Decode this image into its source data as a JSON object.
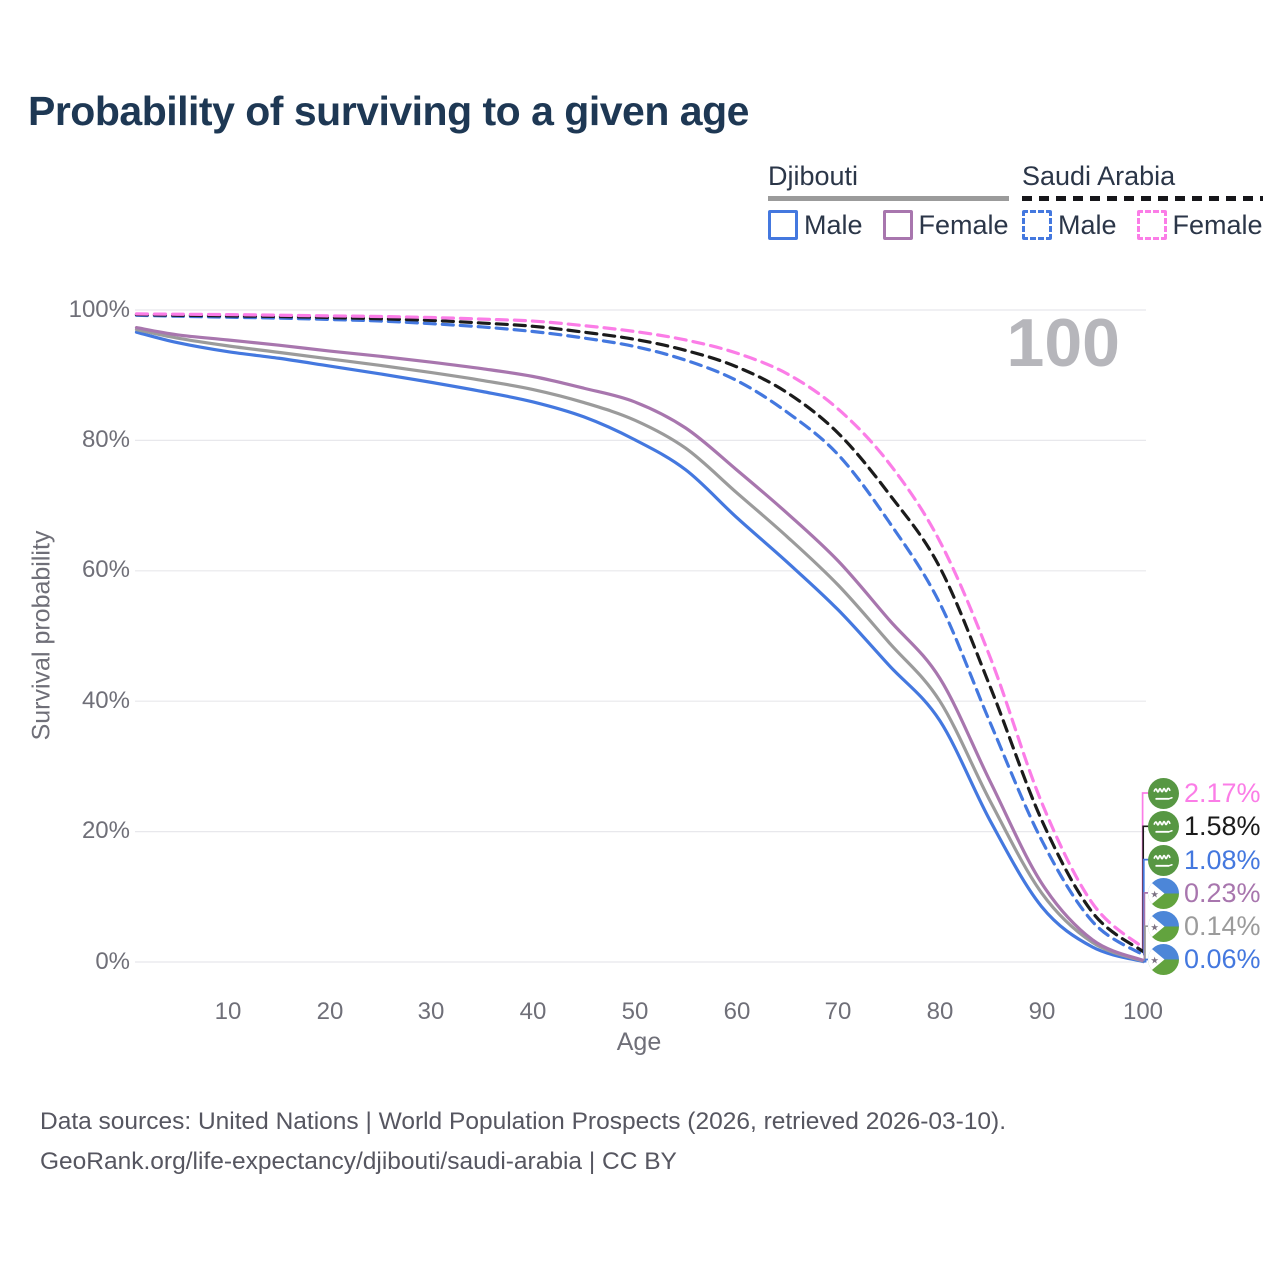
{
  "title": "Probability of surviving to a given age",
  "watermark": "100",
  "legend": {
    "groups": [
      {
        "label": "Djibouti",
        "line_style": "solid",
        "underline_color": "#9b9b9b",
        "items": [
          {
            "label": "Male",
            "color": "#4478df"
          },
          {
            "label": "Female",
            "color": "#a876ae"
          }
        ]
      },
      {
        "label": "Saudi Arabia",
        "line_style": "dashed",
        "underline_color": "#16161a",
        "items": [
          {
            "label": "Male",
            "color": "#4478df"
          },
          {
            "label": "Female",
            "color": "#fb7de7"
          }
        ]
      }
    ]
  },
  "chart_data": {
    "type": "line",
    "title": "Probability of surviving to a given age",
    "xlabel": "Age",
    "ylabel": "Survival probability",
    "xlim": [
      1,
      100
    ],
    "ylim": [
      0,
      100
    ],
    "grid": "horizontal",
    "legend_position": "top-right",
    "x_ticks": [
      10,
      20,
      30,
      40,
      50,
      60,
      70,
      80,
      90,
      100
    ],
    "y_tick_labels": [
      "0%",
      "20%",
      "40%",
      "60%",
      "80%",
      "100%"
    ],
    "y_gridlines": [
      0,
      20,
      40,
      60,
      80,
      100
    ],
    "ages": [
      1,
      5,
      10,
      15,
      20,
      25,
      30,
      35,
      40,
      45,
      50,
      55,
      60,
      65,
      70,
      75,
      80,
      85,
      90,
      95,
      100
    ],
    "series": [
      {
        "name": "Saudi Arabia Female",
        "country": "Saudi Arabia",
        "sex": "Female",
        "line": "dashed",
        "color": "#fb7de7",
        "end_value_pct": 2.17,
        "end_label": "2.17%",
        "values": [
          99.4,
          99.35,
          99.3,
          99.2,
          99.1,
          99.0,
          98.85,
          98.6,
          98.3,
          97.6,
          96.7,
          95.4,
          93.4,
          90.2,
          84.8,
          76.5,
          64.5,
          46.5,
          24.5,
          9.0,
          2.17
        ]
      },
      {
        "name": "Saudi Arabia Both sexes",
        "country": "Saudi Arabia",
        "sex": "Both sexes",
        "line": "dashed",
        "color": "#1b1b1b",
        "end_value_pct": 1.58,
        "end_label": "1.58%",
        "values": [
          99.3,
          99.2,
          99.1,
          99.0,
          98.85,
          98.65,
          98.4,
          98.0,
          97.5,
          96.6,
          95.5,
          93.8,
          91.3,
          87.3,
          81.1,
          71.8,
          60.5,
          42.0,
          21.8,
          7.6,
          1.58
        ]
      },
      {
        "name": "Saudi Arabia Male",
        "country": "Saudi Arabia",
        "sex": "Male",
        "line": "dashed",
        "color": "#4478df",
        "end_value_pct": 1.08,
        "end_label": "1.08%",
        "values": [
          99.2,
          99.05,
          98.9,
          98.75,
          98.55,
          98.3,
          97.9,
          97.4,
          96.7,
          95.7,
          94.4,
          92.3,
          89.2,
          84.3,
          77.8,
          67.5,
          55.0,
          36.5,
          18.7,
          6.2,
          1.08
        ]
      },
      {
        "name": "Djibouti Female",
        "country": "Djibouti",
        "sex": "Female",
        "line": "solid",
        "color": "#a876ae",
        "end_value_pct": 0.23,
        "end_label": "0.23%",
        "values": [
          97.3,
          96.2,
          95.4,
          94.6,
          93.7,
          92.9,
          92.0,
          91.0,
          89.8,
          88.0,
          85.9,
          81.9,
          75.5,
          68.8,
          61.5,
          52.5,
          43.5,
          27.5,
          12.1,
          3.4,
          0.23
        ]
      },
      {
        "name": "Djibouti Both sexes",
        "country": "Djibouti",
        "sex": "Both sexes",
        "line": "solid",
        "color": "#9b9b9b",
        "end_value_pct": 0.14,
        "end_label": "0.14%",
        "values": [
          97.0,
          95.7,
          94.5,
          93.5,
          92.5,
          91.5,
          90.4,
          89.2,
          87.8,
          85.8,
          83.1,
          78.8,
          72.0,
          65.2,
          57.8,
          49.0,
          40.0,
          24.5,
          10.6,
          3.0,
          0.14
        ]
      },
      {
        "name": "Djibouti Male",
        "country": "Djibouti",
        "sex": "Male",
        "line": "solid",
        "color": "#4478df",
        "end_value_pct": 0.06,
        "end_label": "0.06%",
        "values": [
          96.6,
          95.0,
          93.6,
          92.6,
          91.4,
          90.2,
          88.9,
          87.5,
          85.9,
          83.6,
          80.1,
          75.5,
          68.2,
          61.3,
          54.0,
          45.5,
          37.0,
          21.5,
          8.5,
          2.3,
          0.06
        ]
      }
    ]
  },
  "end_labels": [
    {
      "value": "2.17%",
      "color": "#fb7de7",
      "flag": "saudi-arabia"
    },
    {
      "value": "1.58%",
      "color": "#1b1b1b",
      "flag": "saudi-arabia"
    },
    {
      "value": "1.08%",
      "color": "#4478df",
      "flag": "saudi-arabia"
    },
    {
      "value": "0.23%",
      "color": "#a876ae",
      "flag": "djibouti"
    },
    {
      "value": "0.14%",
      "color": "#9b9b9b",
      "flag": "djibouti"
    },
    {
      "value": "0.06%",
      "color": "#4478df",
      "flag": "djibouti"
    }
  ],
  "footer": {
    "line1": "Data sources: United Nations | World Population Prospects (2026, retrieved 2026-03-10).",
    "line2": "GeoRank.org/life-expectancy/djibouti/saudi-arabia | CC BY"
  }
}
